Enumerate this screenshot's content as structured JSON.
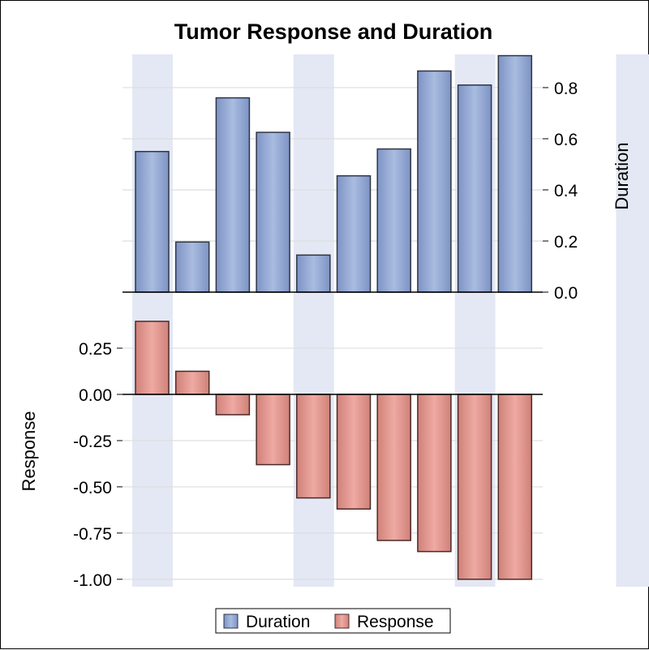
{
  "chart_data": {
    "type": "bar",
    "title": "Tumor Response and Duration",
    "series": [
      {
        "name": "Duration",
        "panel": "top",
        "axis": "right",
        "ylabel": "Duration",
        "ylim": [
          0,
          0.93
        ],
        "ticks": [
          0.0,
          0.2,
          0.4,
          0.6,
          0.8
        ],
        "tick_labels": [
          "0.0",
          "0.2",
          "0.4",
          "0.6",
          "0.8"
        ],
        "color": "#9aaed6",
        "edge": "#2f3545",
        "values": [
          0.55,
          0.196,
          0.76,
          0.625,
          0.145,
          0.455,
          0.56,
          0.865,
          0.81,
          0.925
        ]
      },
      {
        "name": "Response",
        "panel": "bottom",
        "axis": "left",
        "ylabel": "Response",
        "ylim": [
          -1.03,
          0.42
        ],
        "ticks": [
          0.25,
          0.0,
          -0.25,
          -0.5,
          -0.75,
          -1.0
        ],
        "tick_labels": [
          "0.25",
          "0.00",
          "-0.25",
          "-0.50",
          "-0.75",
          "-1.00"
        ],
        "color": "#e09c94",
        "edge": "#4a2a28",
        "values": [
          0.395,
          0.125,
          -0.11,
          -0.38,
          -0.56,
          -0.62,
          -0.79,
          -0.85,
          -1.0,
          -1.0
        ]
      }
    ],
    "band_color": "#e3e8f4",
    "grid": true,
    "legend": {
      "position": "bottom",
      "entries": [
        "Duration",
        "Response"
      ]
    }
  }
}
